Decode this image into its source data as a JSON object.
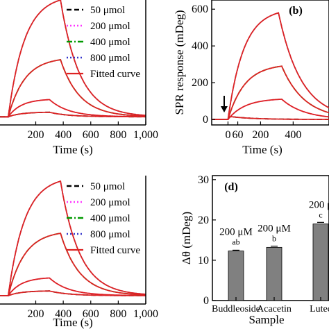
{
  "chart_data": [
    {
      "id": "a",
      "type": "line",
      "panel_label": "",
      "xlabel": "Time (s)",
      "ylabel": "",
      "x_ticks": [
        "200",
        "400",
        "600",
        "800",
        "1,000"
      ],
      "y_ticks": [],
      "xlim": [
        -60,
        1000
      ],
      "ylim": [
        -40,
        650
      ],
      "legend": {
        "placement": "top-right",
        "entries": [
          {
            "name": "50 μmol",
            "color": "#000000",
            "style": "dashed"
          },
          {
            "name": "200 μmol",
            "color": "#ff33ff",
            "style": "dotted"
          },
          {
            "name": "400 μmol",
            "color": "#009900",
            "style": "dashdot"
          },
          {
            "name": "800 μmol",
            "color": "#3333cc",
            "style": "dotted"
          },
          {
            "name": "Fitted curve",
            "color": "#dd2222",
            "style": "solid"
          }
        ]
      },
      "series": [
        {
          "color": "#000000",
          "style": "dashed",
          "peak_time": 300,
          "peak": 30,
          "baseline": 5
        },
        {
          "color": "#ff33ff",
          "style": "dotted",
          "peak_time": 300,
          "peak": 100,
          "baseline": 5
        },
        {
          "color": "#009900",
          "style": "dashdot",
          "peak_time": 380,
          "peak": 320,
          "baseline": 5
        },
        {
          "color": "#3333cc",
          "style": "dotted",
          "peak_time": 380,
          "peak": 650,
          "baseline": 5
        }
      ]
    },
    {
      "id": "b",
      "type": "line",
      "panel_label": "(b)",
      "xlabel": "Time (s)",
      "ylabel": "SPR response (mDeg)",
      "x_ticks": [
        "0",
        "200",
        "400",
        "60"
      ],
      "y_ticks": [
        "0",
        "200",
        "400",
        "600"
      ],
      "xlim": [
        -100,
        620
      ],
      "ylim": [
        -30,
        650
      ],
      "series": [
        {
          "color": "#000000",
          "style": "dashed",
          "peak_time": 20,
          "peak": 15,
          "baseline": 0
        },
        {
          "color": "#ff33ff",
          "style": "dotted",
          "peak_time": 330,
          "peak": 110,
          "baseline": 0
        },
        {
          "color": "#009900",
          "style": "dashdot",
          "peak_time": 330,
          "peak": 290,
          "baseline": 0
        },
        {
          "color": "#3333cc",
          "style": "dotted",
          "peak_time": 310,
          "peak": 580,
          "baseline": 0
        }
      ]
    },
    {
      "id": "c",
      "type": "line",
      "panel_label": "",
      "xlabel": "Time (s)",
      "ylabel": "",
      "x_ticks": [
        "200",
        "400",
        "600",
        "800",
        "1,000"
      ],
      "y_ticks": [],
      "xlim": [
        -60,
        1000
      ],
      "ylim": [
        -40,
        650
      ],
      "legend": {
        "placement": "top-right",
        "entries": [
          {
            "name": "50 μmol",
            "color": "#000000",
            "style": "dashed"
          },
          {
            "name": "200 μmol",
            "color": "#ff33ff",
            "style": "dotted"
          },
          {
            "name": "400 μmol",
            "color": "#009900",
            "style": "dashdot"
          },
          {
            "name": "800 μmol",
            "color": "#3333cc",
            "style": "dotted"
          },
          {
            "name": "Fitted curve",
            "color": "#dd2222",
            "style": "solid"
          }
        ]
      },
      "series": [
        {
          "color": "#000000",
          "style": "dashed",
          "peak_time": 300,
          "peak": 30,
          "baseline": 5
        },
        {
          "color": "#ff33ff",
          "style": "dotted",
          "peak_time": 300,
          "peak": 100,
          "baseline": 5
        },
        {
          "color": "#009900",
          "style": "dashdot",
          "peak_time": 380,
          "peak": 340,
          "baseline": 5
        },
        {
          "color": "#3333cc",
          "style": "dotted",
          "peak_time": 380,
          "peak": 620,
          "baseline": 5
        }
      ]
    },
    {
      "id": "d",
      "type": "bar",
      "panel_label": "(d)",
      "xlabel": "Sample",
      "ylabel": "Δθ (mDeg)",
      "y_ticks": [
        "0",
        "10",
        "20",
        "30"
      ],
      "ylim": [
        0,
        31
      ],
      "categories": [
        "Buddleoside",
        "Acacetin",
        "Lutec"
      ],
      "values": [
        12.3,
        13.2,
        19.0
      ],
      "errors": [
        0.2,
        0.3,
        0.4
      ],
      "bar_labels": [
        "200 μM",
        "200 μM",
        "200 μ"
      ],
      "significance": [
        "ab",
        "b",
        "c"
      ],
      "bar_color": "#808080"
    }
  ]
}
